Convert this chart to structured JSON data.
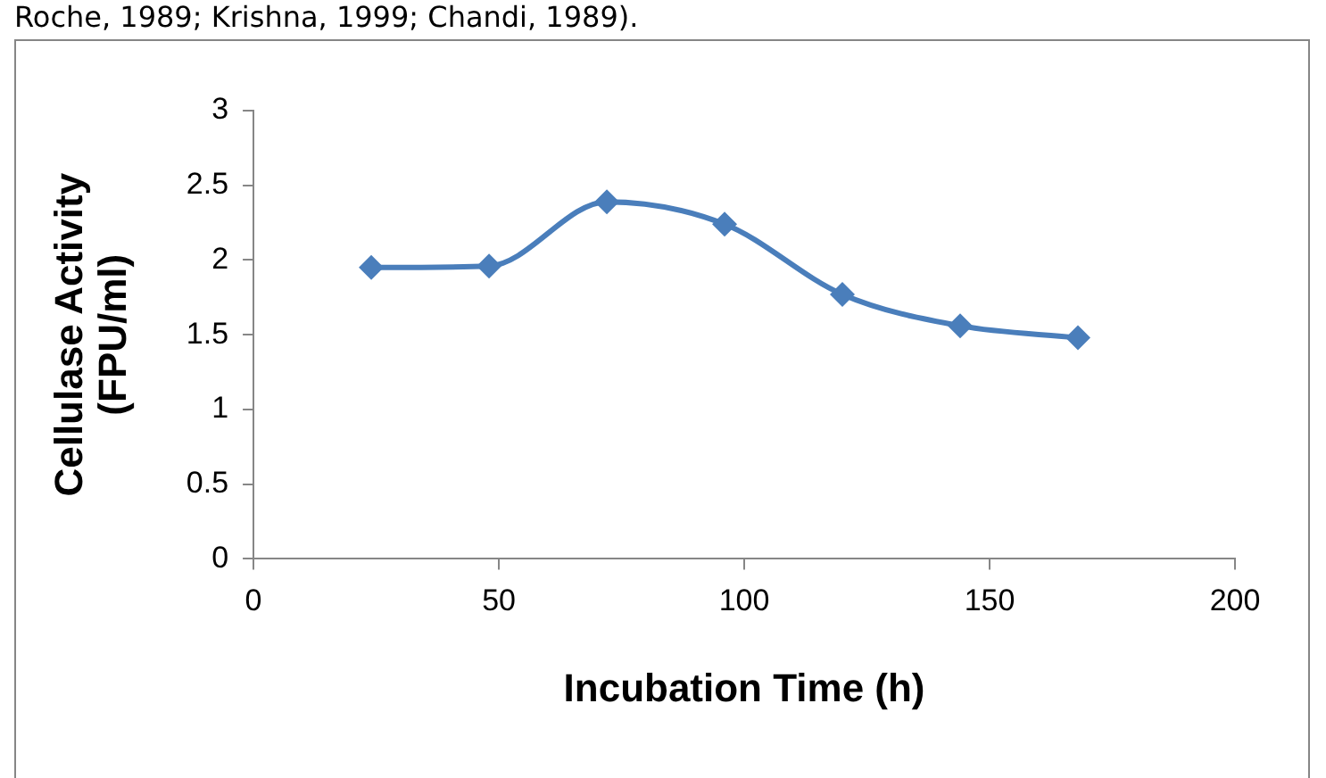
{
  "chart_data": {
    "type": "line",
    "xlabel": "Incubation Time (h)",
    "ylabel": "Cellulase Activity\n(FPU/ml)",
    "annotations": [
      "Roche, 1989; Krishna, 1999; Chandi, 1989)."
    ],
    "x": [
      24,
      48,
      72,
      96,
      120,
      144,
      168
    ],
    "series": [
      {
        "color": "#4a7ebb",
        "values": [
          1.95,
          1.96,
          2.39,
          2.24,
          1.77,
          1.56,
          1.48
        ]
      }
    ],
    "xlim": [
      0,
      200
    ],
    "xticks": [
      0,
      50,
      100,
      150,
      200
    ],
    "ylim": [
      0,
      3
    ],
    "yticks": [
      0,
      0.5,
      1,
      1.5,
      2,
      2.5,
      3
    ],
    "grid": false,
    "legend": false,
    "marker": "diamond",
    "line_style": "solid"
  }
}
